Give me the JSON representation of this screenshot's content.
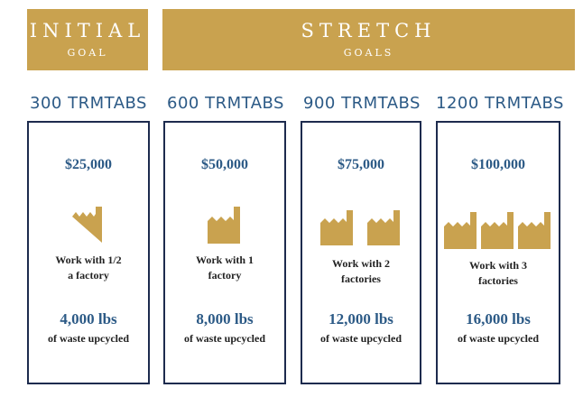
{
  "colors": {
    "gold": "#c9a24f",
    "navy": "#1d2b4e",
    "blue": "#2c5a86"
  },
  "banners": {
    "initial": {
      "title": "INITIAL",
      "subtitle": "GOAL"
    },
    "stretch": {
      "title": "STRETCH",
      "subtitle": "GOALS"
    }
  },
  "tiers": [
    {
      "label": "300 TRMTABS",
      "price": "$25,000",
      "work_line1": "Work with 1/2",
      "work_line2": "a factory",
      "lbs": "4,000 lbs",
      "waste": "of waste upcycled",
      "icon": "half-factory-icon"
    },
    {
      "label": "600 TRMTABS",
      "price": "$50,000",
      "work_line1": "Work with 1",
      "work_line2": "factory",
      "lbs": "8,000 lbs",
      "waste": "of waste upcycled",
      "icon": "factory-icon"
    },
    {
      "label": "900 TRMTABS",
      "price": "$75,000",
      "work_line1": "Work with 2",
      "work_line2": "factories",
      "lbs": "12,000 lbs",
      "waste": "of waste upcycled",
      "icon": "two-factories-icon"
    },
    {
      "label": "1200 TRMTABS",
      "price": "$100,000",
      "work_line1": "Work with 3",
      "work_line2": "factories",
      "lbs": "16,000 lbs",
      "waste": "of waste upcycled",
      "icon": "three-factories-icon"
    }
  ]
}
